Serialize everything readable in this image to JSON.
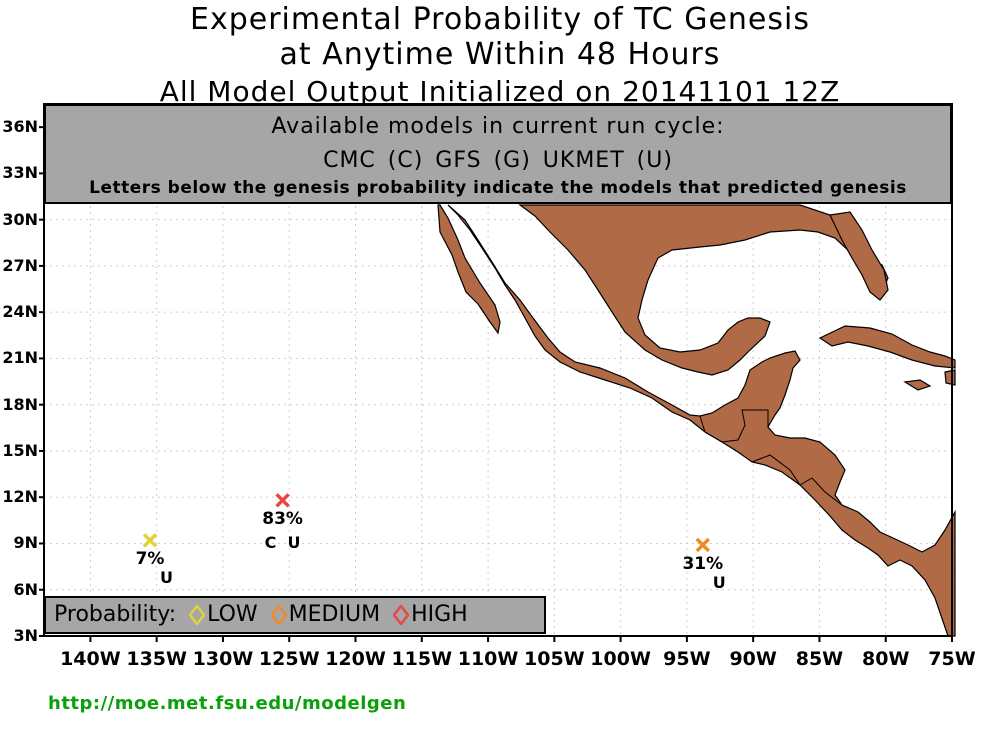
{
  "title": {
    "line1": "Experimental Probability of TC Genesis",
    "line2": "at Anytime Within 48 Hours",
    "line3": "All Model Output Initialized on 20141101 12Z"
  },
  "info_box": {
    "line1": "Available models in current run cycle:",
    "line2": "CMC (C) GFS (G)  UKMET (U)",
    "line3": "Letters below the genesis probability indicate the models that predicted genesis"
  },
  "lat_ticks": [
    "36N",
    "33N",
    "30N",
    "27N",
    "24N",
    "21N",
    "18N",
    "15N",
    "12N",
    "9N",
    "6N",
    "3N"
  ],
  "lon_ticks": [
    "140W",
    "135W",
    "130W",
    "125W",
    "120W",
    "115W",
    "110W",
    "105W",
    "100W",
    "95W",
    "90W",
    "85W",
    "80W",
    "75W"
  ],
  "legend": {
    "label": "Probability:",
    "items": [
      {
        "label": "LOW",
        "color": "#e0d23a"
      },
      {
        "label": "MEDIUM",
        "color": "#f08a28"
      },
      {
        "label": "HIGH",
        "color": "#e84545"
      }
    ]
  },
  "points": [
    {
      "lon": -135.5,
      "lat": 9.2,
      "probability": "7%",
      "models": "U",
      "color": "#e0d23a"
    },
    {
      "lon": -125.5,
      "lat": 11.8,
      "probability": "83%",
      "models": "C  U",
      "color": "#e84545"
    },
    {
      "lon": -93.8,
      "lat": 8.9,
      "probability": "31%",
      "models": "U",
      "color": "#f08a28"
    }
  ],
  "land_color": "#b06a45",
  "url": "http://moe.met.fsu.edu/modelgen"
}
